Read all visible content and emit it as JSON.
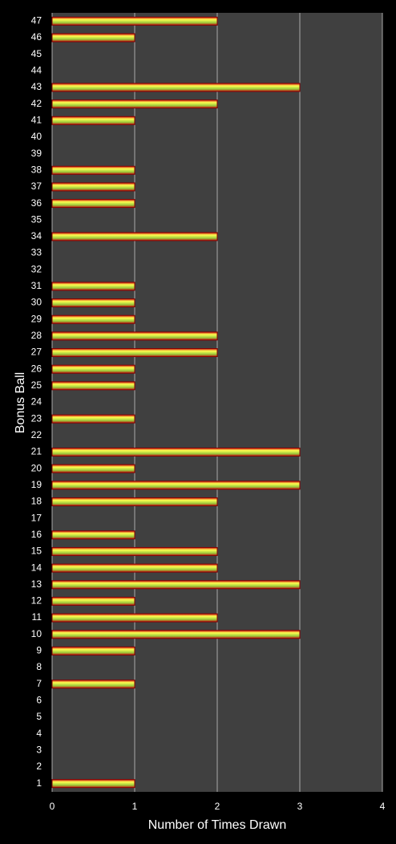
{
  "chart_data": {
    "type": "barh",
    "ylabel": "Bonus Ball",
    "xlabel": "Number of Times Drawn",
    "categories": [
      "1",
      "2",
      "3",
      "4",
      "5",
      "6",
      "7",
      "8",
      "9",
      "10",
      "11",
      "12",
      "13",
      "14",
      "15",
      "16",
      "17",
      "18",
      "19",
      "20",
      "21",
      "22",
      "23",
      "24",
      "25",
      "26",
      "27",
      "28",
      "29",
      "30",
      "31",
      "32",
      "33",
      "34",
      "35",
      "36",
      "37",
      "38",
      "39",
      "40",
      "41",
      "42",
      "43",
      "44",
      "45",
      "46",
      "47"
    ],
    "values": [
      1,
      0,
      0,
      0,
      0,
      0,
      1,
      0,
      1,
      3,
      2,
      1,
      3,
      2,
      2,
      1,
      0,
      2,
      3,
      1,
      3,
      0,
      1,
      0,
      1,
      1,
      2,
      2,
      1,
      1,
      1,
      0,
      0,
      2,
      0,
      1,
      1,
      1,
      0,
      0,
      1,
      2,
      3,
      0,
      0,
      1,
      2
    ],
    "xlim": [
      0,
      4
    ],
    "xticks": [
      0,
      1,
      2,
      3,
      4
    ],
    "grid": true
  }
}
